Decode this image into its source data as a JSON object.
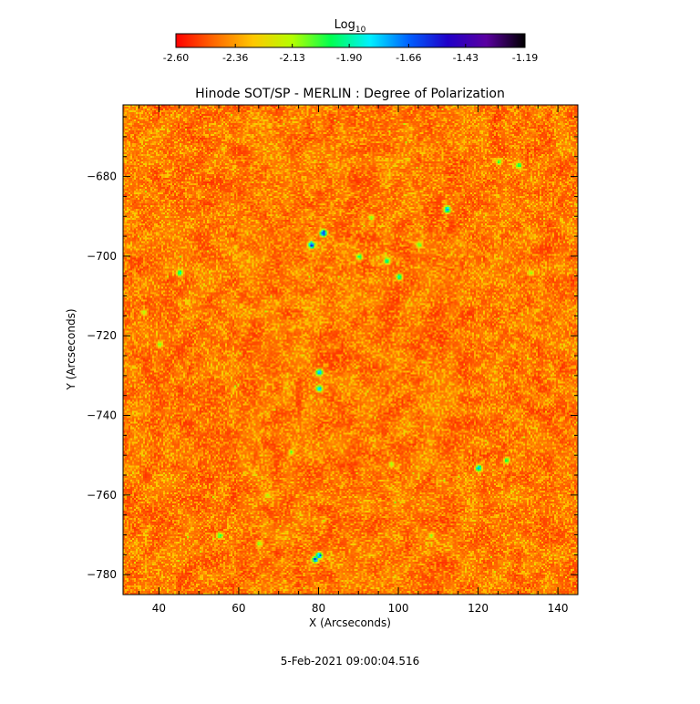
{
  "colorbar": {
    "label_base": "Log",
    "label_sub": "10",
    "tick_labels": [
      "-2.60",
      "-2.36",
      "-2.13",
      "-1.90",
      "-1.66",
      "-1.43",
      "-1.19"
    ]
  },
  "chart_data": {
    "type": "heatmap",
    "title": "Hinode SOT/SP - MERLIN : Degree of Polarization",
    "xlabel": "X (Arcseconds)",
    "ylabel": "Y (Arcseconds)",
    "xlim": [
      31,
      145
    ],
    "ylim": [
      -785,
      -662
    ],
    "xticks": [
      40,
      60,
      80,
      100,
      120,
      140
    ],
    "yticks": [
      -680,
      -700,
      -720,
      -740,
      -760,
      -780
    ],
    "xtick_labels": [
      "40",
      "60",
      "80",
      "100",
      "120",
      "140"
    ],
    "ytick_labels": [
      "-680",
      "-700",
      "-720",
      "-740",
      "-760",
      "-780"
    ],
    "value_range": [
      -2.6,
      -1.19
    ],
    "value_scale": "log10",
    "colormap": [
      "#ff0000",
      "#ff6a00",
      "#ffc800",
      "#b4ff00",
      "#00ff50",
      "#00f0ff",
      "#0060ff",
      "#2000c8",
      "#5a00a0",
      "#000000"
    ],
    "grid": false,
    "features": [
      {
        "x": 81,
        "y": -694,
        "value": -1.35
      },
      {
        "x": 78,
        "y": -697,
        "value": -1.4
      },
      {
        "x": 97,
        "y": -701,
        "value": -1.75
      },
      {
        "x": 90,
        "y": -700,
        "value": -1.85
      },
      {
        "x": 100,
        "y": -705,
        "value": -1.8
      },
      {
        "x": 105,
        "y": -697,
        "value": -1.95
      },
      {
        "x": 93,
        "y": -690,
        "value": -2.0
      },
      {
        "x": 112,
        "y": -688,
        "value": -1.55
      },
      {
        "x": 80,
        "y": -729,
        "value": -1.55
      },
      {
        "x": 80,
        "y": -733,
        "value": -1.65
      },
      {
        "x": 80,
        "y": -775,
        "value": -1.55
      },
      {
        "x": 79,
        "y": -776,
        "value": -1.5
      },
      {
        "x": 120,
        "y": -753,
        "value": -1.6
      },
      {
        "x": 127,
        "y": -751,
        "value": -1.9
      },
      {
        "x": 45,
        "y": -704,
        "value": -1.75
      },
      {
        "x": 130,
        "y": -677,
        "value": -1.85
      },
      {
        "x": 125,
        "y": -676,
        "value": -1.95
      },
      {
        "x": 73,
        "y": -749,
        "value": -2.0
      },
      {
        "x": 98,
        "y": -752,
        "value": -2.05
      },
      {
        "x": 55,
        "y": -770,
        "value": -1.85
      },
      {
        "x": 133,
        "y": -704,
        "value": -2.0
      },
      {
        "x": 36,
        "y": -714,
        "value": -2.05
      },
      {
        "x": 40,
        "y": -722,
        "value": -1.95
      },
      {
        "x": 67,
        "y": -760,
        "value": -2.05
      },
      {
        "x": 108,
        "y": -770,
        "value": -2.05
      },
      {
        "x": 65,
        "y": -772,
        "value": -2.0
      }
    ]
  },
  "footer": {
    "timestamp": "5-Feb-2021 09:00:04.516"
  }
}
